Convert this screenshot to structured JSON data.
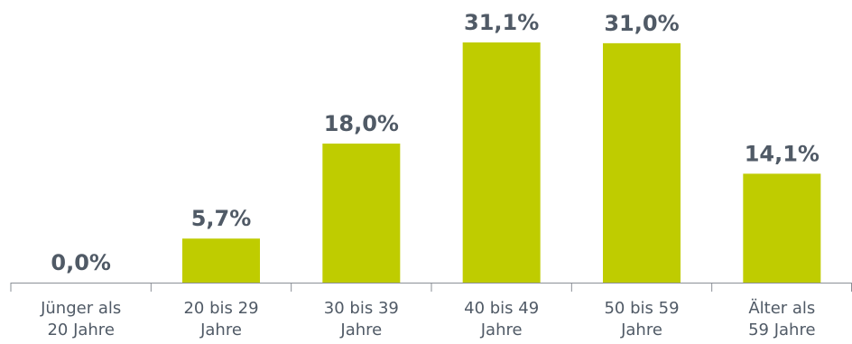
{
  "chart_data": {
    "type": "bar",
    "categories": [
      [
        "Jünger als",
        "20 Jahre"
      ],
      [
        "20 bis 29",
        "Jahre"
      ],
      [
        "30 bis 39",
        "Jahre"
      ],
      [
        "40 bis 49",
        "Jahre"
      ],
      [
        "50 bis 59",
        "Jahre"
      ],
      [
        "Älter als",
        "59 Jahre"
      ]
    ],
    "values": [
      0.0,
      5.7,
      18.0,
      31.1,
      31.0,
      14.1
    ],
    "data_labels": [
      "0,0%",
      "5,7%",
      "18,0%",
      "31,1%",
      "31,0%",
      "14,1%"
    ],
    "unit": "%",
    "title": "",
    "xlabel": "",
    "ylabel": "",
    "ylim": [
      0,
      31.1
    ],
    "grid": false,
    "legend": "none",
    "colors": {
      "bar": "#bfcc00",
      "text": "#505a66",
      "axis": "#8a8f96"
    }
  }
}
